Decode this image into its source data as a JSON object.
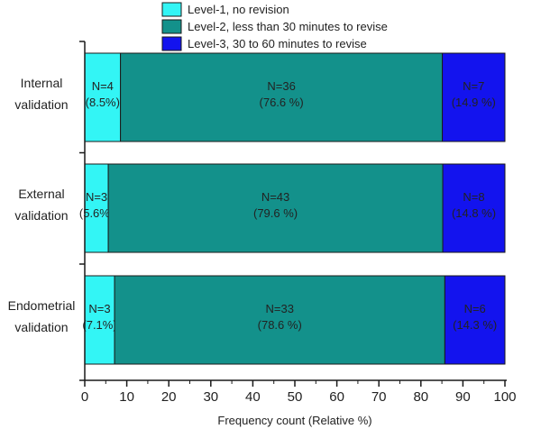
{
  "chart_data": {
    "type": "bar",
    "orientation": "horizontal",
    "stacked": true,
    "title": "",
    "xlabel": "Frequency count (Relative %)",
    "ylabel": "",
    "xlim": [
      0,
      100
    ],
    "xticks": [
      "0",
      "10",
      "20",
      "30",
      "40",
      "50",
      "60",
      "70",
      "80",
      "90",
      "100"
    ],
    "grid": false,
    "legend_position": "top",
    "categories": [
      [
        "Internal",
        "validation"
      ],
      [
        "External",
        "validation"
      ],
      [
        "Endometrial",
        "validation"
      ]
    ],
    "series": [
      {
        "name": "Level-1, no revision",
        "color": "#33f5f5",
        "values": [
          8.5,
          5.6,
          7.1
        ],
        "labels": [
          [
            "N=4",
            "(8.5%)"
          ],
          [
            "N=3",
            "(5.6%)"
          ],
          [
            "N=3",
            "(7.1%)"
          ]
        ]
      },
      {
        "name": "Level-2, less than 30 minutes to revise",
        "color": "#13918b",
        "values": [
          76.6,
          79.6,
          78.6
        ],
        "labels": [
          [
            "N=36",
            "(76.6 %)"
          ],
          [
            "N=43",
            "(79.6 %)"
          ],
          [
            "N=33",
            "(78.6 %)"
          ]
        ]
      },
      {
        "name": "Level-3, 30 to 60 minutes to revise",
        "color": "#1313ee",
        "values": [
          14.9,
          14.8,
          14.3
        ],
        "labels": [
          [
            "N=7",
            "(14.9 %)"
          ],
          [
            "N=8",
            "(14.8 %)"
          ],
          [
            "N=6",
            "(14.3 %)"
          ]
        ]
      }
    ]
  }
}
